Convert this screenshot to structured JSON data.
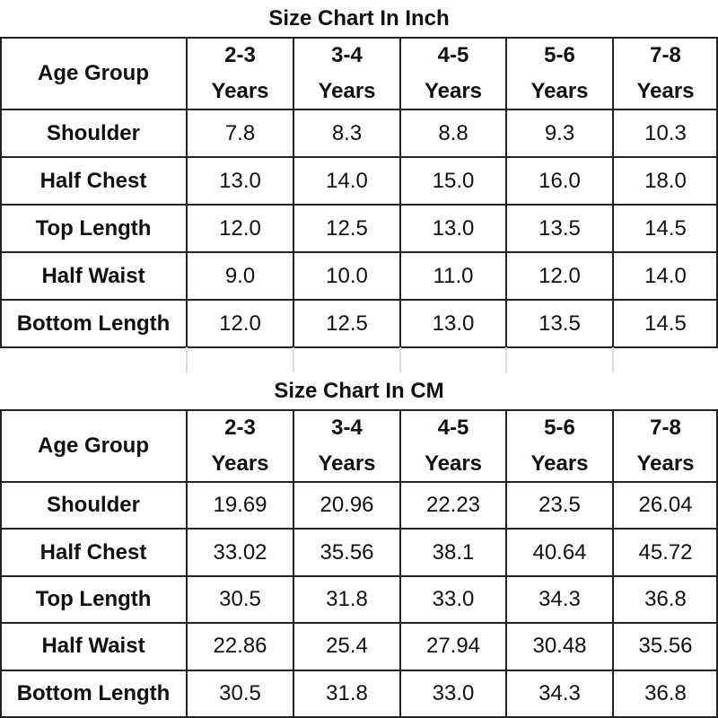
{
  "tables": [
    {
      "title": "Size Chart In Inch",
      "header": [
        "Age Group",
        "2-3\nYears",
        "3-4\nYears",
        "4-5\nYears",
        "5-6\nYears",
        "7-8\nYears"
      ],
      "rows": [
        [
          "Shoulder",
          "7.8",
          "8.3",
          "8.8",
          "9.3",
          "10.3"
        ],
        [
          "Half Chest",
          "13.0",
          "14.0",
          "15.0",
          "16.0",
          "18.0"
        ],
        [
          "Top Length",
          "12.0",
          "12.5",
          "13.0",
          "13.5",
          "14.5"
        ],
        [
          "Half Waist",
          "9.0",
          "10.0",
          "11.0",
          "12.0",
          "14.0"
        ],
        [
          "Bottom Length",
          "12.0",
          "12.5",
          "13.0",
          "13.5",
          "14.5"
        ]
      ]
    },
    {
      "title": "Size Chart In CM",
      "header": [
        "Age Group",
        "2-3\nYears",
        "3-4\nYears",
        "4-5\nYears",
        "5-6\nYears",
        "7-8\nYears"
      ],
      "rows": [
        [
          "Shoulder",
          "19.69",
          "20.96",
          "22.23",
          "23.5",
          "26.04"
        ],
        [
          "Half Chest",
          "33.02",
          "35.56",
          "38.1",
          "40.64",
          "45.72"
        ],
        [
          "Top Length",
          "30.5",
          "31.8",
          "33.0",
          "34.3",
          "36.8"
        ],
        [
          "Half Waist",
          "22.86",
          "25.4",
          "27.94",
          "30.48",
          "35.56"
        ],
        [
          "Bottom Length",
          "30.5",
          "31.8",
          "33.0",
          "34.3",
          "36.8"
        ]
      ]
    }
  ]
}
